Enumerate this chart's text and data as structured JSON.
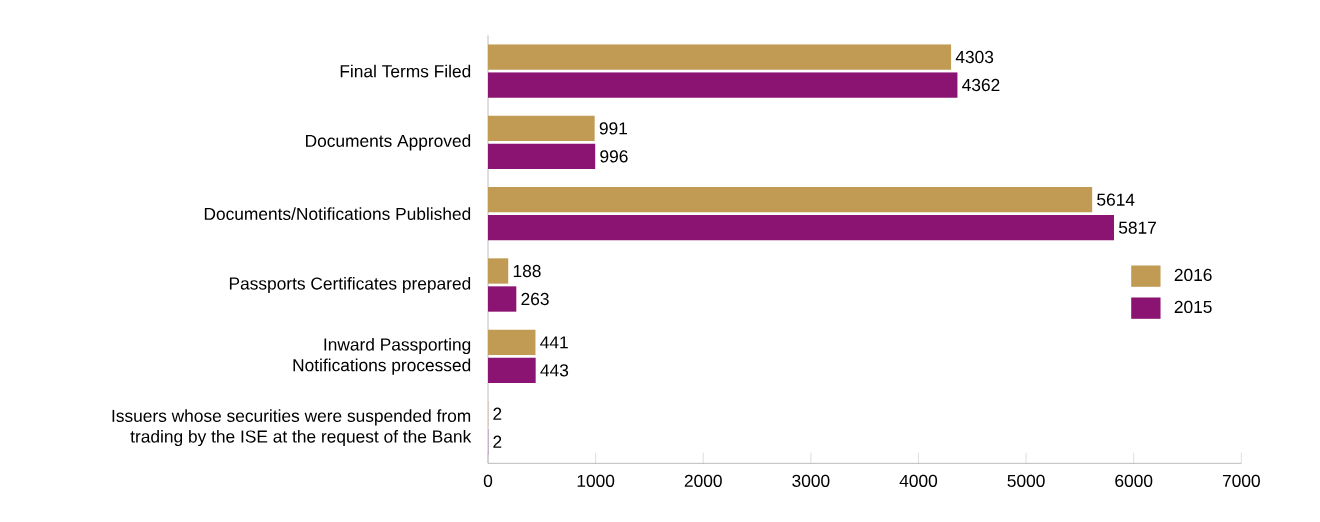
{
  "chart_data": {
    "type": "bar",
    "orientation": "horizontal",
    "categories": [
      "Final Terms Filed",
      "Documents Approved",
      "Documents/Notifications Published",
      "Passports Certificates prepared",
      "Inward Passporting Notifications processed",
      "Issuers whose securities were suspended from trading by the ISE at the request of the Bank"
    ],
    "series": [
      {
        "name": "2016",
        "color": "#c19a53",
        "values": [
          4303,
          991,
          5614,
          188,
          441,
          2
        ]
      },
      {
        "name": "2015",
        "color": "#8b1372",
        "values": [
          4362,
          996,
          5817,
          263,
          443,
          2
        ]
      }
    ],
    "xlim": [
      0,
      7000
    ],
    "xticks": [
      0,
      1000,
      2000,
      3000,
      4000,
      5000,
      6000,
      7000
    ],
    "data_labels": true,
    "legend": "right",
    "grid": false
  }
}
